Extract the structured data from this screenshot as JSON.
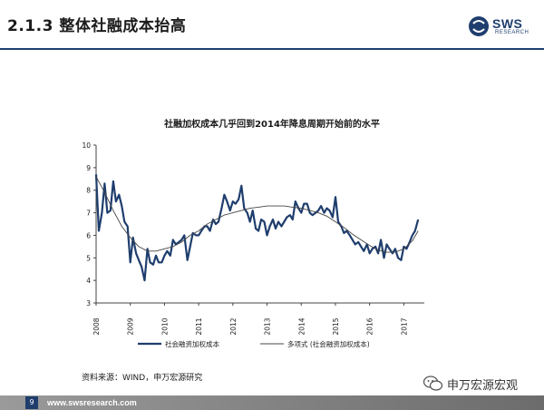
{
  "slide": {
    "title": "2.1.3 整体社融成本抬高",
    "logo_text": "SWS",
    "logo_sub": "RESEARCH",
    "source": "资料来源：WIND，申万宏源研究",
    "watermark": "申万宏源宏观",
    "page_number": "9",
    "footer_url": "www.swsresearch.com",
    "colors": {
      "brand": "#1f3e6e",
      "series": "#1f3e6e",
      "trend": "#444444"
    }
  },
  "chart_data": {
    "type": "line",
    "title": "社融加权成本几乎回到2014年降息周期开始前的水平",
    "ylim": [
      3,
      10
    ],
    "yticks": [
      3,
      4,
      5,
      6,
      7,
      8,
      9,
      10
    ],
    "xlim": [
      2008,
      2017.6
    ],
    "xticks": [
      "2008",
      "2009",
      "2010",
      "2011",
      "2012",
      "2013",
      "2014",
      "2015",
      "2016",
      "2017"
    ],
    "grid": false,
    "legend": "bottom",
    "series": [
      {
        "name": "社会融资加权成本",
        "x": [
          2008.0,
          2008.08,
          2008.17,
          2008.25,
          2008.33,
          2008.42,
          2008.5,
          2008.58,
          2008.67,
          2008.75,
          2008.83,
          2008.92,
          2009.0,
          2009.08,
          2009.17,
          2009.25,
          2009.33,
          2009.42,
          2009.5,
          2009.58,
          2009.67,
          2009.75,
          2009.83,
          2009.92,
          2010.0,
          2010.08,
          2010.17,
          2010.25,
          2010.33,
          2010.42,
          2010.5,
          2010.58,
          2010.67,
          2010.75,
          2010.83,
          2010.92,
          2011.0,
          2011.08,
          2011.17,
          2011.25,
          2011.33,
          2011.42,
          2011.5,
          2011.58,
          2011.67,
          2011.75,
          2011.83,
          2011.92,
          2012.0,
          2012.08,
          2012.17,
          2012.25,
          2012.33,
          2012.42,
          2012.5,
          2012.58,
          2012.67,
          2012.75,
          2012.83,
          2012.92,
          2013.0,
          2013.08,
          2013.17,
          2013.25,
          2013.33,
          2013.42,
          2013.5,
          2013.58,
          2013.67,
          2013.75,
          2013.83,
          2013.92,
          2014.0,
          2014.08,
          2014.17,
          2014.25,
          2014.33,
          2014.42,
          2014.5,
          2014.58,
          2014.67,
          2014.75,
          2014.83,
          2014.92,
          2015.0,
          2015.08,
          2015.17,
          2015.25,
          2015.33,
          2015.42,
          2015.5,
          2015.58,
          2015.67,
          2015.75,
          2015.83,
          2015.92,
          2016.0,
          2016.08,
          2016.17,
          2016.25,
          2016.33,
          2016.42,
          2016.5,
          2016.58,
          2016.67,
          2016.75,
          2016.83,
          2016.92,
          2017.0,
          2017.08,
          2017.17,
          2017.25,
          2017.33,
          2017.42
        ],
        "values": [
          8.7,
          6.2,
          7.0,
          8.3,
          7.0,
          7.1,
          8.4,
          7.5,
          7.8,
          7.3,
          6.6,
          6.4,
          4.8,
          5.9,
          5.2,
          4.9,
          4.6,
          4.0,
          5.4,
          4.8,
          4.7,
          5.1,
          4.8,
          4.8,
          5.1,
          5.3,
          5.1,
          5.8,
          5.6,
          5.7,
          5.8,
          6.0,
          4.9,
          5.5,
          6.1,
          6.0,
          6.0,
          6.2,
          6.4,
          6.4,
          6.2,
          6.7,
          6.5,
          6.6,
          7.2,
          7.8,
          7.5,
          7.1,
          7.5,
          7.4,
          7.6,
          8.2,
          7.2,
          7.0,
          6.6,
          7.1,
          6.3,
          6.2,
          6.7,
          6.6,
          6.0,
          6.4,
          6.7,
          6.3,
          6.6,
          6.4,
          6.6,
          6.8,
          6.9,
          6.7,
          7.5,
          7.2,
          7.0,
          7.4,
          7.4,
          7.0,
          6.9,
          7.0,
          7.1,
          7.3,
          7.0,
          7.2,
          7.1,
          6.8,
          7.7,
          6.6,
          6.4,
          6.1,
          6.2,
          6.0,
          5.8,
          5.6,
          5.7,
          5.5,
          5.3,
          5.6,
          5.2,
          5.4,
          5.5,
          5.2,
          5.8,
          5.0,
          5.6,
          5.4,
          5.2,
          5.4,
          5.0,
          4.9,
          5.5,
          5.4,
          5.7,
          6.0,
          6.2,
          6.7
        ]
      },
      {
        "name": "多项式 (社会融资加权成本)",
        "x": [
          2008.0,
          2008.25,
          2008.5,
          2008.75,
          2009.0,
          2009.25,
          2009.5,
          2009.75,
          2010.0,
          2010.25,
          2010.5,
          2010.75,
          2011.0,
          2011.25,
          2011.5,
          2011.75,
          2012.0,
          2012.25,
          2012.5,
          2012.75,
          2013.0,
          2013.25,
          2013.5,
          2013.75,
          2014.0,
          2014.25,
          2014.5,
          2014.75,
          2015.0,
          2015.25,
          2015.5,
          2015.75,
          2016.0,
          2016.25,
          2016.5,
          2016.75,
          2017.0,
          2017.25,
          2017.42
        ],
        "values": [
          8.6,
          7.9,
          7.1,
          6.4,
          5.9,
          5.5,
          5.3,
          5.3,
          5.4,
          5.5,
          5.7,
          6.0,
          6.2,
          6.5,
          6.7,
          6.9,
          7.0,
          7.1,
          7.2,
          7.25,
          7.3,
          7.3,
          7.3,
          7.25,
          7.2,
          7.1,
          7.0,
          6.85,
          6.6,
          6.35,
          6.05,
          5.8,
          5.55,
          5.35,
          5.25,
          5.25,
          5.4,
          5.75,
          6.2
        ]
      }
    ]
  }
}
